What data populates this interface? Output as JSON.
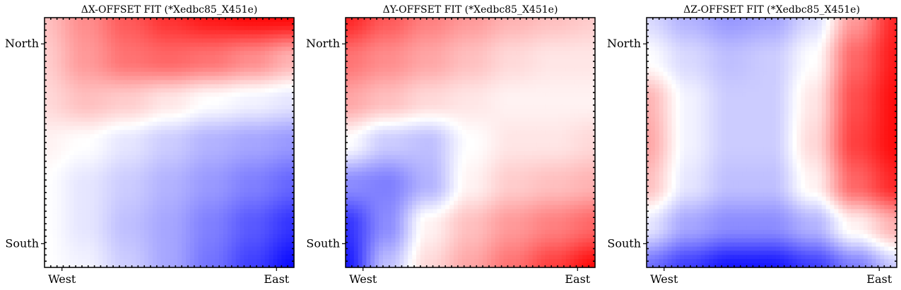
{
  "chart_data": [
    {
      "type": "heatmap",
      "title": "ΔX-OFFSET FIT (*Xedbc85_X451e)",
      "xticklabels": [
        "West",
        "East"
      ],
      "yticklabels": [
        "North",
        "South"
      ],
      "colormap": "bwr",
      "colors": {
        "low": "#0000ff",
        "mid": "#ffffff",
        "high": "#ff0000"
      },
      "grid": [
        [
          0.25,
          0.45,
          0.65,
          0.8,
          0.9,
          0.95,
          0.95
        ],
        [
          0.2,
          0.4,
          0.55,
          0.6,
          0.55,
          0.45,
          0.3
        ],
        [
          0.15,
          0.25,
          0.2,
          0.1,
          0.0,
          -0.05,
          -0.1
        ],
        [
          0.05,
          0.0,
          -0.1,
          -0.2,
          -0.3,
          -0.35,
          -0.4
        ],
        [
          0.0,
          -0.1,
          -0.2,
          -0.3,
          -0.4,
          -0.5,
          -0.6
        ],
        [
          0.0,
          -0.1,
          -0.25,
          -0.35,
          -0.5,
          -0.65,
          -0.8
        ],
        [
          0.0,
          -0.05,
          -0.2,
          -0.35,
          -0.55,
          -0.75,
          -0.95
        ]
      ]
    },
    {
      "type": "heatmap",
      "title": "ΔY-OFFSET FIT (*Xedbc85_X451e)",
      "xticklabels": [
        "West",
        "East"
      ],
      "yticklabels": [
        "North",
        "South"
      ],
      "colormap": "bwr",
      "colors": {
        "low": "#0000ff",
        "mid": "#ffffff",
        "high": "#ff0000"
      },
      "grid": [
        [
          0.85,
          0.65,
          0.5,
          0.4,
          0.3,
          0.25,
          0.2
        ],
        [
          0.55,
          0.45,
          0.35,
          0.25,
          0.15,
          0.1,
          0.1
        ],
        [
          0.35,
          0.25,
          0.15,
          0.1,
          0.05,
          0.05,
          0.05
        ],
        [
          0.0,
          -0.2,
          -0.25,
          0.0,
          0.1,
          0.1,
          0.15
        ],
        [
          -0.45,
          -0.5,
          -0.3,
          0.05,
          0.2,
          0.25,
          0.3
        ],
        [
          -0.8,
          -0.45,
          0.05,
          0.25,
          0.4,
          0.5,
          0.6
        ],
        [
          -0.9,
          -0.25,
          0.15,
          0.35,
          0.55,
          0.75,
          0.95
        ]
      ]
    },
    {
      "type": "heatmap",
      "title": "ΔZ-OFFSET FIT (*Xedbc85_X451e)",
      "xticklabels": [
        "West",
        "East"
      ],
      "yticklabels": [
        "North",
        "South"
      ],
      "colormap": "bwr",
      "colors": {
        "low": "#0000ff",
        "mid": "#ffffff",
        "high": "#ff0000"
      },
      "grid": [
        [
          -0.15,
          -0.3,
          -0.4,
          -0.35,
          -0.15,
          0.4,
          0.85
        ],
        [
          0.0,
          -0.15,
          -0.25,
          -0.2,
          0.0,
          0.6,
          0.9
        ],
        [
          0.3,
          -0.05,
          -0.2,
          -0.2,
          0.1,
          0.7,
          0.95
        ],
        [
          0.35,
          -0.05,
          -0.2,
          -0.2,
          0.15,
          0.75,
          0.95
        ],
        [
          0.25,
          -0.1,
          -0.25,
          -0.25,
          0.05,
          0.6,
          0.85
        ],
        [
          -0.1,
          -0.35,
          -0.45,
          -0.45,
          -0.3,
          0.05,
          0.3
        ],
        [
          -0.55,
          -0.75,
          -0.9,
          -0.9,
          -0.75,
          -0.5,
          -0.2
        ]
      ]
    }
  ]
}
